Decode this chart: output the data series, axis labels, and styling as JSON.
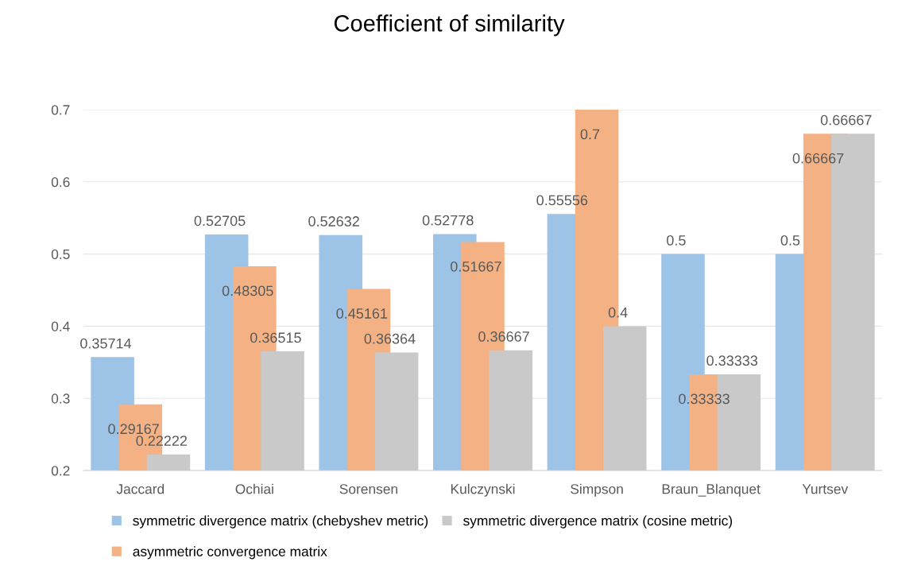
{
  "chart_data": {
    "type": "bar",
    "title": "Coefficient of similarity",
    "categories": [
      "Jaccard",
      "Ochiai",
      "Sorensen",
      "Kulczynski",
      "Simpson",
      "Braun_Blanquet",
      "Yurtsev"
    ],
    "series": [
      {
        "name": "symmetric divergence matrix (chebyshev metric)",
        "color": "#9dc3e6",
        "values": [
          0.35714,
          0.52705,
          0.52632,
          0.52778,
          0.55556,
          0.5,
          0.5
        ]
      },
      {
        "name": "asymmetric convergence matrix",
        "color": "#f4b183",
        "values": [
          0.29167,
          0.48305,
          0.45161,
          0.51667,
          0.7,
          0.33333,
          0.66667
        ]
      },
      {
        "name": "symmetric divergence matrix (cosine metric)",
        "color": "#c9c9c9",
        "values": [
          0.22222,
          0.36515,
          0.36364,
          0.36667,
          0.4,
          0.33333,
          0.66667
        ]
      }
    ],
    "ylim": [
      0.2,
      0.7
    ],
    "yticks": [
      0.2,
      0.3,
      0.4,
      0.5,
      0.6,
      0.7
    ],
    "grid": "y",
    "legend": "bottom",
    "data_labels": true
  }
}
